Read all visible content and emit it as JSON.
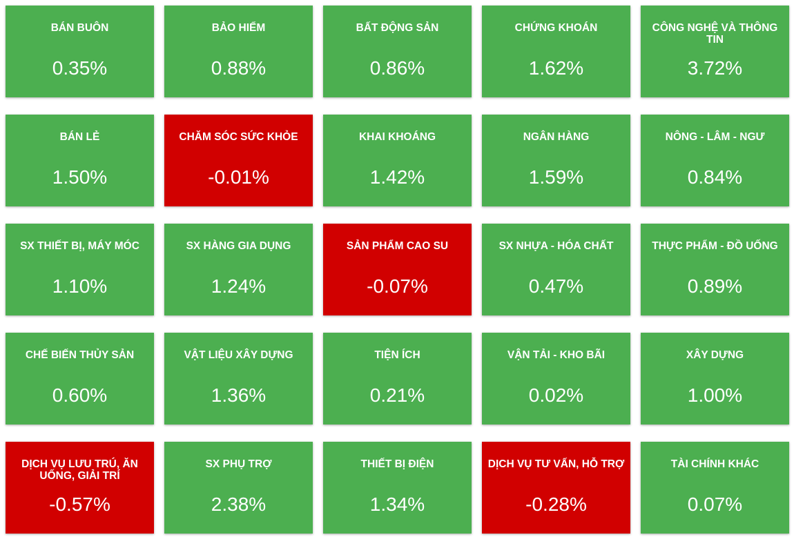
{
  "colors": {
    "up": "#4caf50",
    "down": "#d10000",
    "text": "#ffffff"
  },
  "sectors": [
    {
      "name": "BÁN BUÔN",
      "change": "0.35%",
      "trend": "up"
    },
    {
      "name": "BẢO HIỂM",
      "change": "0.88%",
      "trend": "up"
    },
    {
      "name": "BẤT ĐỘNG SẢN",
      "change": "0.86%",
      "trend": "up"
    },
    {
      "name": "CHỨNG KHOÁN",
      "change": "1.62%",
      "trend": "up"
    },
    {
      "name": "CÔNG NGHỆ VÀ THÔNG TIN",
      "change": "3.72%",
      "trend": "up"
    },
    {
      "name": "BÁN LẺ",
      "change": "1.50%",
      "trend": "up"
    },
    {
      "name": "CHĂM SÓC SỨC KHỎE",
      "change": "-0.01%",
      "trend": "down"
    },
    {
      "name": "KHAI KHOÁNG",
      "change": "1.42%",
      "trend": "up"
    },
    {
      "name": "NGÂN HÀNG",
      "change": "1.59%",
      "trend": "up"
    },
    {
      "name": "NÔNG - LÂM - NGƯ",
      "change": "0.84%",
      "trend": "up"
    },
    {
      "name": "SX THIẾT BỊ, MÁY MÓC",
      "change": "1.10%",
      "trend": "up"
    },
    {
      "name": "SX HÀNG GIA DỤNG",
      "change": "1.24%",
      "trend": "up"
    },
    {
      "name": "SẢN PHẨM CAO SU",
      "change": "-0.07%",
      "trend": "down"
    },
    {
      "name": "SX NHỰA - HÓA CHẤT",
      "change": "0.47%",
      "trend": "up"
    },
    {
      "name": "THỰC PHẨM - ĐỒ UỐNG",
      "change": "0.89%",
      "trend": "up"
    },
    {
      "name": "CHẾ BIẾN THỦY SẢN",
      "change": "0.60%",
      "trend": "up"
    },
    {
      "name": "VẬT LIỆU XÂY DỰNG",
      "change": "1.36%",
      "trend": "up"
    },
    {
      "name": "TIỆN ÍCH",
      "change": "0.21%",
      "trend": "up"
    },
    {
      "name": "VẬN TẢI - KHO BÃI",
      "change": "0.02%",
      "trend": "up"
    },
    {
      "name": "XÂY DỰNG",
      "change": "1.00%",
      "trend": "up"
    },
    {
      "name": "DỊCH VỤ LƯU TRÚ, ĂN UỐNG, GIẢI TRÍ",
      "change": "-0.57%",
      "trend": "down"
    },
    {
      "name": "SX PHỤ TRỢ",
      "change": "2.38%",
      "trend": "up"
    },
    {
      "name": "THIẾT BỊ ĐIỆN",
      "change": "1.34%",
      "trend": "up"
    },
    {
      "name": "DỊCH VỤ TƯ VẤN, HỖ TRỢ",
      "change": "-0.28%",
      "trend": "down"
    },
    {
      "name": "TÀI CHÍNH KHÁC",
      "change": "0.07%",
      "trend": "up"
    }
  ]
}
